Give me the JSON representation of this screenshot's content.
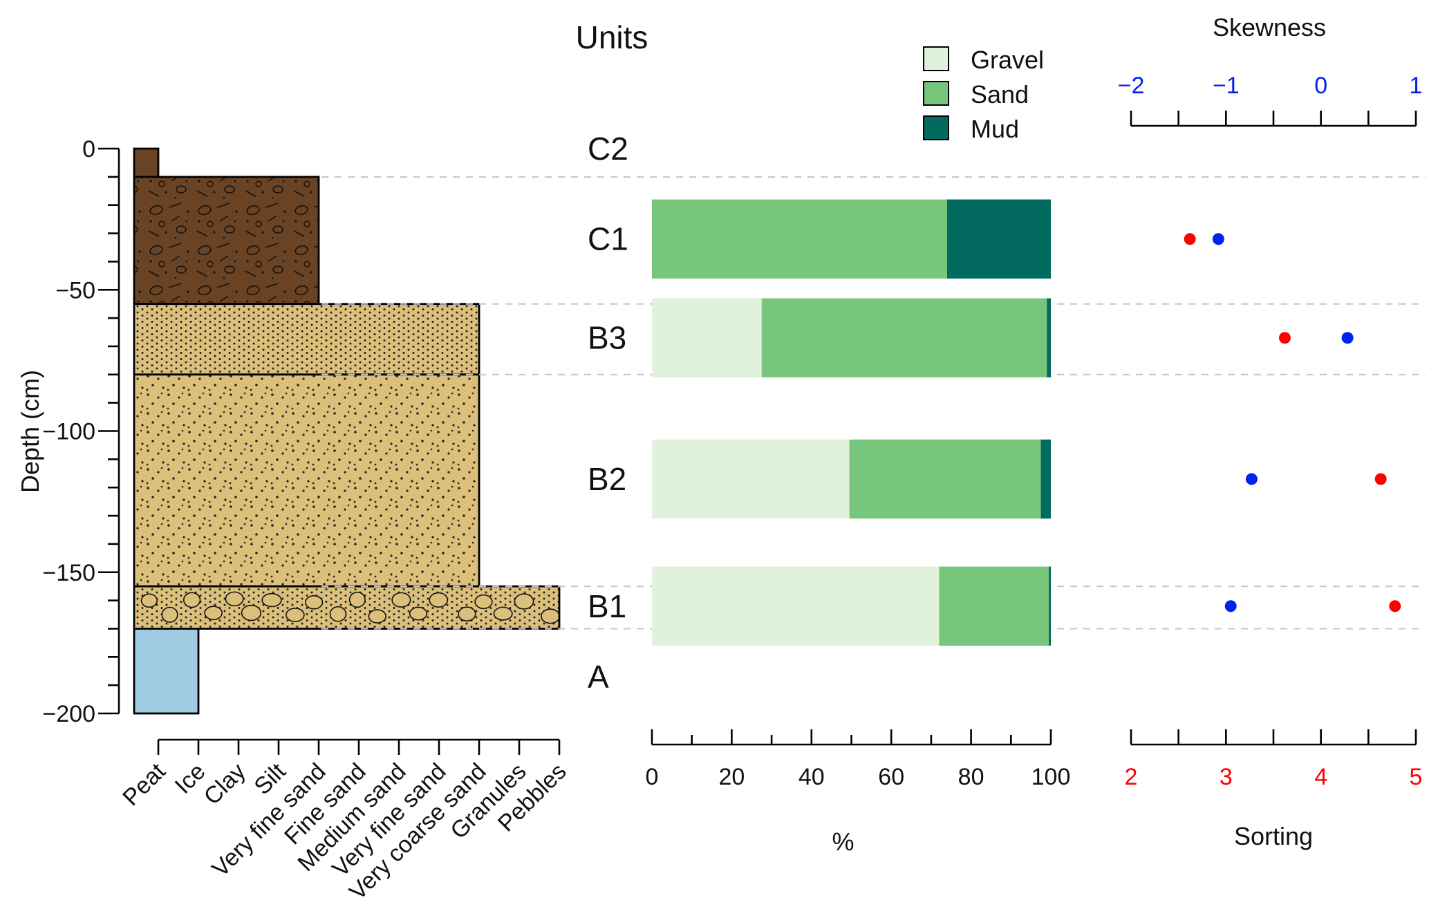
{
  "colors": {
    "gravel": "#e0f2dc",
    "sand": "#78c67b",
    "mud": "#036a5f",
    "peat": "#6a4324",
    "ice": "#9ecbe2",
    "sand_layer": "#ddbf7c",
    "sorting_dot": "#ff0000",
    "skewness_dot": "#0022ee",
    "dashed_line": "#c8c8c8"
  },
  "chart_data": [
    {
      "type": "table",
      "panel": "lithology",
      "ylabel": "Depth (cm)",
      "ylim": [
        -200,
        0
      ],
      "yticks": [
        0,
        -50,
        -100,
        -150,
        -200
      ],
      "ytick_labels": [
        "0",
        "−50",
        "−100",
        "−150",
        "−200"
      ],
      "grain_sizes": [
        "Peat",
        "Ice",
        "Clay",
        "Silt",
        "Very fine sand",
        "Fine sand",
        "Medium sand",
        "Very fine sand",
        "Very coarse sand",
        "Granules",
        "Pebbles"
      ],
      "layers": [
        {
          "top": 0,
          "bottom": -10,
          "grain_index": 0,
          "texture": "peat",
          "fill": "peat"
        },
        {
          "top": -10,
          "bottom": -55,
          "grain_index": 4,
          "texture": "peat-clasts",
          "fill": "peat"
        },
        {
          "top": -55,
          "bottom": -80,
          "grain_index": 8,
          "texture": "fine-dots",
          "fill": "sand_layer"
        },
        {
          "top": -80,
          "bottom": -155,
          "grain_index": 8,
          "texture": "coarse-dots",
          "fill": "sand_layer"
        },
        {
          "top": -155,
          "bottom": -170,
          "grain_index": 10,
          "texture": "pebbles",
          "fill": "sand_layer"
        },
        {
          "top": -170,
          "bottom": -200,
          "grain_index": 1,
          "texture": "none",
          "fill": "ice"
        }
      ]
    },
    {
      "type": "bar",
      "panel": "grain size composition",
      "orientation": "horizontal",
      "stacked": true,
      "title": "Units",
      "units": [
        {
          "label": "C2",
          "depth": 0
        },
        {
          "label": "C1",
          "depth": -32
        },
        {
          "label": "B3",
          "depth": -67
        },
        {
          "label": "B2",
          "depth": -117
        },
        {
          "label": "B1",
          "depth": -162
        },
        {
          "label": "A",
          "depth": -187
        }
      ],
      "boundaries": [
        -10,
        -55,
        -80,
        -155,
        -170
      ],
      "categories": [
        "C1",
        "B3",
        "B2",
        "B1"
      ],
      "bar_centers": [
        -32,
        -67,
        -117,
        -162
      ],
      "bar_thickness": 28,
      "series": [
        {
          "name": "Gravel",
          "values": [
            0,
            27.5,
            49.5,
            72
          ]
        },
        {
          "name": "Sand",
          "values": [
            74,
            71.5,
            48,
            27.5
          ]
        },
        {
          "name": "Mud",
          "values": [
            26,
            1,
            2.5,
            0.5
          ]
        }
      ],
      "xlabel": "%",
      "xlim": [
        0,
        100
      ],
      "xticks": [
        0,
        20,
        40,
        60,
        80,
        100
      ],
      "legend": "top-right"
    },
    {
      "type": "scatter",
      "panel": "sorting and skewness",
      "series": [
        {
          "name": "Sorting",
          "axis": "bottom",
          "points": [
            {
              "y": -32,
              "x": 2.62
            },
            {
              "y": -67,
              "x": 3.62
            },
            {
              "y": -117,
              "x": 4.63
            },
            {
              "y": -162,
              "x": 4.78
            }
          ]
        },
        {
          "name": "Skewness",
          "axis": "top",
          "points": [
            {
              "y": -32,
              "x": -1.08
            },
            {
              "y": -67,
              "x": 0.28
            },
            {
              "y": -117,
              "x": -0.73
            },
            {
              "y": -162,
              "x": -0.95
            }
          ]
        }
      ],
      "xlabel": "Sorting",
      "xlim": [
        2,
        5
      ],
      "xticks": [
        2,
        3,
        4,
        5
      ],
      "x2label": "Skewness",
      "x2lim": [
        -2,
        1
      ],
      "x2ticks": [
        -2,
        -1,
        0,
        1
      ],
      "x2tick_labels": [
        "−2",
        "−1",
        "0",
        "1"
      ]
    }
  ]
}
